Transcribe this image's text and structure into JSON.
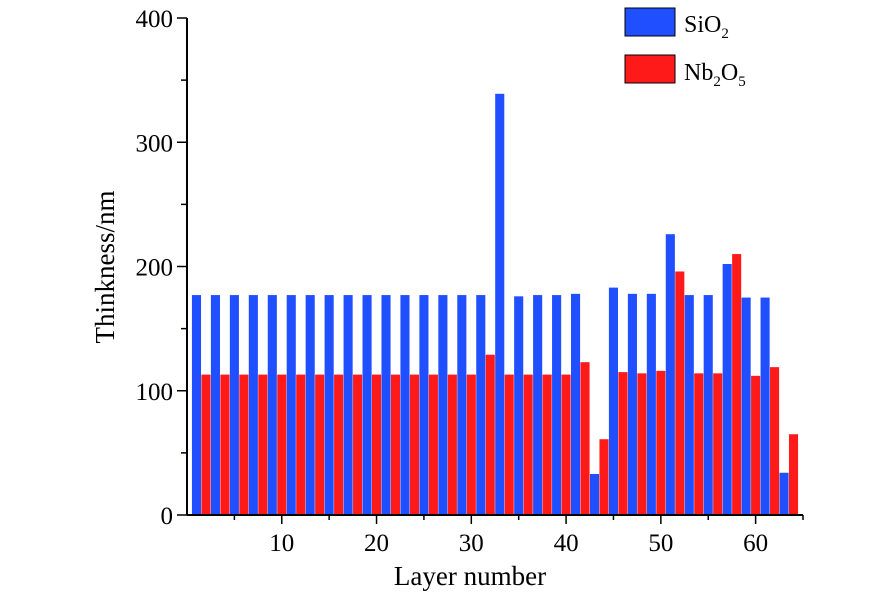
{
  "chart_data": {
    "type": "bar",
    "title": "",
    "xlabel": "Layer number",
    "ylabel": "Thinkness/nm",
    "xlim": [
      0,
      65
    ],
    "ylim": [
      0,
      400
    ],
    "x_ticks": [
      10,
      20,
      30,
      40,
      50,
      60
    ],
    "y_ticks": [
      0,
      100,
      200,
      300,
      400
    ],
    "grid": false,
    "legend_position": "top-right",
    "series": [
      {
        "name": "SiO2",
        "label_base": "SiO",
        "label_sub": "2",
        "color": "#1f4fff",
        "x": [
          1,
          3,
          5,
          7,
          9,
          11,
          13,
          15,
          17,
          19,
          21,
          23,
          25,
          27,
          29,
          31,
          33,
          35,
          37,
          39,
          41,
          43,
          45,
          47,
          49,
          51,
          53,
          55,
          57,
          59,
          61,
          63
        ],
        "values": [
          177,
          177,
          177,
          177,
          177,
          177,
          177,
          177,
          177,
          177,
          177,
          177,
          177,
          177,
          177,
          177,
          339,
          176,
          177,
          177,
          178,
          33,
          183,
          178,
          178,
          226,
          177,
          177,
          202,
          175,
          175,
          34
        ]
      },
      {
        "name": "Nb2O5",
        "label_parts": [
          "Nb",
          "2",
          "O",
          "5"
        ],
        "color": "#ff1a1a",
        "x": [
          2,
          4,
          6,
          8,
          10,
          12,
          14,
          16,
          18,
          20,
          22,
          24,
          26,
          28,
          30,
          32,
          34,
          36,
          38,
          40,
          42,
          44,
          46,
          48,
          50,
          52,
          54,
          56,
          58,
          60,
          62,
          64
        ],
        "values": [
          113,
          113,
          113,
          113,
          113,
          113,
          113,
          113,
          113,
          113,
          113,
          113,
          113,
          113,
          113,
          129,
          113,
          113,
          113,
          113,
          123,
          61,
          115,
          114,
          116,
          196,
          114,
          114,
          210,
          112,
          119,
          65
        ]
      }
    ]
  }
}
